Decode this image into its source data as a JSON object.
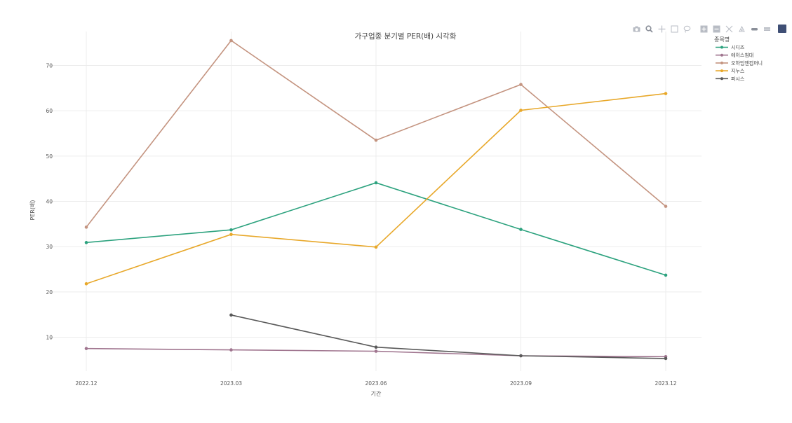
{
  "chart_data": {
    "type": "line",
    "title": "가구업종 분기별 PER(배) 시각화",
    "xlabel": "기간",
    "ylabel": "PER(배)",
    "categories": [
      "2022.12",
      "2023.03",
      "2023.06",
      "2023.09",
      "2023.12"
    ],
    "y_ticks": [
      10,
      20,
      30,
      40,
      50,
      60,
      70
    ],
    "ylim": [
      2.5,
      77.5
    ],
    "grid": true,
    "legend_title": "종목명",
    "legend_position": "top-right",
    "series": [
      {
        "name": "시디즈",
        "color": "#2ca27e",
        "values": [
          30.9,
          33.7,
          44.1,
          33.8,
          23.7
        ]
      },
      {
        "name": "에이스침대",
        "color": "#a0758f",
        "values": [
          7.5,
          7.2,
          6.9,
          5.9,
          5.7
        ]
      },
      {
        "name": "오하임앤컴퍼니",
        "color": "#c49480",
        "values": [
          34.3,
          75.5,
          53.5,
          65.8,
          38.9
        ]
      },
      {
        "name": "지누스",
        "color": "#e8a82a",
        "values": [
          21.8,
          32.7,
          29.9,
          60.1,
          63.8
        ]
      },
      {
        "name": "퍼시스",
        "color": "#5a5a5a",
        "values": [
          null,
          14.9,
          7.8,
          5.9,
          5.3
        ]
      }
    ]
  },
  "modebar": {
    "icons": [
      "camera-icon",
      "zoom-icon",
      "pan-icon",
      "box-select-icon",
      "lasso-icon",
      "zoom-in-icon",
      "zoom-out-icon",
      "autoscale-icon",
      "reset-axes-icon",
      "spike-lines-icon",
      "hover-closest-icon",
      "hover-compare-icon",
      "plotly-logo-icon"
    ]
  }
}
